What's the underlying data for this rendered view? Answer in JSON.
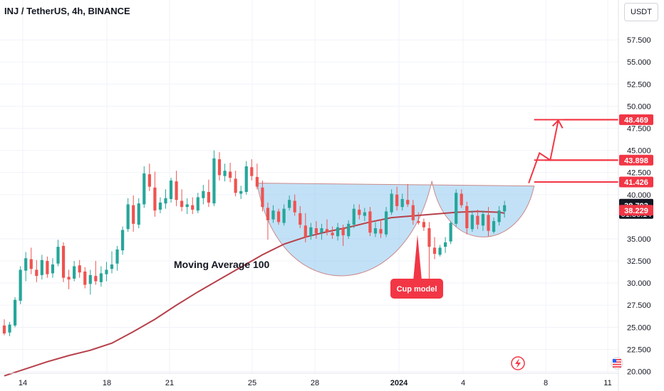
{
  "header": {
    "title": "INJ / TetherUS, 4h, BINANCE",
    "currency": "USDT"
  },
  "annotations": {
    "ma_label": "Moving Average 100",
    "cup_label": "Cup model"
  },
  "colors": {
    "up": "#26a69a",
    "down": "#ef5350",
    "ma": "#b7404a",
    "cup_fill": "#90c8f0",
    "accent": "#f23645"
  },
  "icons": {
    "bolt": "lightning-icon",
    "flag": "us-flag-icon"
  },
  "chart_data": {
    "type": "candlestick",
    "title": "INJ / TetherUS, 4h, BINANCE",
    "ylim": [
      19.8,
      60
    ],
    "y_ticks": [
      "57.500",
      "55.000",
      "52.500",
      "50.000",
      "47.500",
      "45.000",
      "42.500",
      "40.000",
      "35.000",
      "32.500",
      "30.000",
      "27.500",
      "25.000",
      "22.500",
      "20.000"
    ],
    "x_ticks": [
      "14",
      "18",
      "21",
      "25",
      "28",
      "2024",
      "4",
      "8",
      "11"
    ],
    "price_labels": [
      {
        "text": "48.469",
        "value": 48.469,
        "style": "red"
      },
      {
        "text": "43.898",
        "value": 43.898,
        "style": "red"
      },
      {
        "text": "41.426",
        "value": 41.426,
        "style": "red"
      },
      {
        "text": "38.793",
        "value": 38.793,
        "style": "dark",
        "sub": "01:36:14"
      },
      {
        "text": "38.229",
        "value": 38.229,
        "style": "red"
      }
    ],
    "candles": [
      [
        25.2,
        25.9,
        24.1,
        24.3
      ],
      [
        24.4,
        25.6,
        24.0,
        25.3
      ],
      [
        25.2,
        28.4,
        25.0,
        28.1
      ],
      [
        28.0,
        31.9,
        27.6,
        31.5
      ],
      [
        31.4,
        33.5,
        30.2,
        32.8
      ],
      [
        32.7,
        34.0,
        31.0,
        31.6
      ],
      [
        31.5,
        32.6,
        30.1,
        30.8
      ],
      [
        30.9,
        33.2,
        30.4,
        32.6
      ],
      [
        32.5,
        33.0,
        30.6,
        31.0
      ],
      [
        31.1,
        32.8,
        30.6,
        32.1
      ],
      [
        32.2,
        34.9,
        31.9,
        34.1
      ],
      [
        34.2,
        34.6,
        30.1,
        30.6
      ],
      [
        30.7,
        31.5,
        29.3,
        30.4
      ],
      [
        30.5,
        32.5,
        30.2,
        31.9
      ],
      [
        32.0,
        32.6,
        30.6,
        31.2
      ],
      [
        31.3,
        31.8,
        29.4,
        29.8
      ],
      [
        29.9,
        31.5,
        28.7,
        30.9
      ],
      [
        30.8,
        32.5,
        29.8,
        30.2
      ],
      [
        30.1,
        31.9,
        29.6,
        31.1
      ],
      [
        31.0,
        32.4,
        30.2,
        31.5
      ],
      [
        31.6,
        33.6,
        31.1,
        32.1
      ],
      [
        32.2,
        34.2,
        31.4,
        33.8
      ],
      [
        33.7,
        36.4,
        33.2,
        36.0
      ],
      [
        36.1,
        39.6,
        35.8,
        38.9
      ],
      [
        38.8,
        39.9,
        35.8,
        36.7
      ],
      [
        36.6,
        39.6,
        36.2,
        39.0
      ],
      [
        38.9,
        43.2,
        38.5,
        42.4
      ],
      [
        42.3,
        43.5,
        40.4,
        40.9
      ],
      [
        40.8,
        42.6,
        37.5,
        38.2
      ],
      [
        38.3,
        39.7,
        37.9,
        39.1
      ],
      [
        39.0,
        40.6,
        38.4,
        39.6
      ],
      [
        39.5,
        41.9,
        39.1,
        41.6
      ],
      [
        41.5,
        42.7,
        38.7,
        39.4
      ],
      [
        39.3,
        40.6,
        38.1,
        38.6
      ],
      [
        38.6,
        39.6,
        37.8,
        38.9
      ],
      [
        38.8,
        39.7,
        37.8,
        38.3
      ],
      [
        38.2,
        40.2,
        37.9,
        39.7
      ],
      [
        39.6,
        41.1,
        38.9,
        40.4
      ],
      [
        40.3,
        41.7,
        38.6,
        39.1
      ],
      [
        39.0,
        45.0,
        38.7,
        44.1
      ],
      [
        44.0,
        44.8,
        41.6,
        42.2
      ],
      [
        42.1,
        43.5,
        41.5,
        42.7
      ],
      [
        42.6,
        43.6,
        41.4,
        41.9
      ],
      [
        41.8,
        42.7,
        39.8,
        40.2
      ],
      [
        40.1,
        41.0,
        39.5,
        40.4
      ],
      [
        40.3,
        43.8,
        40.0,
        43.2
      ],
      [
        43.1,
        44.0,
        41.6,
        42.1
      ],
      [
        42.0,
        43.5,
        40.6,
        40.9
      ],
      [
        40.8,
        41.6,
        38.1,
        38.6
      ],
      [
        38.5,
        39.1,
        34.9,
        37.1
      ],
      [
        37.2,
        38.8,
        36.8,
        38.2
      ],
      [
        38.1,
        38.4,
        36.6,
        36.9
      ],
      [
        36.8,
        38.9,
        36.5,
        38.4
      ],
      [
        38.5,
        39.9,
        38.2,
        39.4
      ],
      [
        39.3,
        40.0,
        37.6,
        38.0
      ],
      [
        37.9,
        38.7,
        36.2,
        36.6
      ],
      [
        36.5,
        37.9,
        34.6,
        35.2
      ],
      [
        35.3,
        36.8,
        34.9,
        36.3
      ],
      [
        36.2,
        37.0,
        35.0,
        35.6
      ],
      [
        35.7,
        36.7,
        34.9,
        36.2
      ],
      [
        36.1,
        37.2,
        35.4,
        35.8
      ],
      [
        35.7,
        36.4,
        35.0,
        35.4
      ],
      [
        35.3,
        36.8,
        34.8,
        36.3
      ],
      [
        36.2,
        36.6,
        34.2,
        35.4
      ],
      [
        35.3,
        37.1,
        35.0,
        36.7
      ],
      [
        36.6,
        38.9,
        36.2,
        38.4
      ],
      [
        38.3,
        38.9,
        37.2,
        37.7
      ],
      [
        37.6,
        38.5,
        37.0,
        38.0
      ],
      [
        38.1,
        38.6,
        35.3,
        35.7
      ],
      [
        35.6,
        36.9,
        35.2,
        36.2
      ],
      [
        36.1,
        37.2,
        35.1,
        35.6
      ],
      [
        35.5,
        38.6,
        35.2,
        38.1
      ],
      [
        38.0,
        40.6,
        37.7,
        40.1
      ],
      [
        40.0,
        40.9,
        38.2,
        38.7
      ],
      [
        38.6,
        40.1,
        38.2,
        39.5
      ],
      [
        39.4,
        41.2,
        38.6,
        38.9
      ],
      [
        38.8,
        39.4,
        36.6,
        37.1
      ],
      [
        37.0,
        38.0,
        36.6,
        36.8
      ],
      [
        36.9,
        37.3,
        35.9,
        36.3
      ],
      [
        36.2,
        36.9,
        29.4,
        34.1
      ],
      [
        34.0,
        35.2,
        32.7,
        33.3
      ],
      [
        33.2,
        34.3,
        33.0,
        34.0
      ],
      [
        34.1,
        35.2,
        33.4,
        34.6
      ],
      [
        34.7,
        37.0,
        34.4,
        36.8
      ],
      [
        36.7,
        40.6,
        36.4,
        40.2
      ],
      [
        40.1,
        40.6,
        38.5,
        38.8
      ],
      [
        38.7,
        39.2,
        35.5,
        36.2
      ],
      [
        36.1,
        38.2,
        35.8,
        37.7
      ],
      [
        37.6,
        38.3,
        36.1,
        36.6
      ],
      [
        36.5,
        38.2,
        35.9,
        37.8
      ],
      [
        37.7,
        38.6,
        35.3,
        35.9
      ],
      [
        35.8,
        37.4,
        35.6,
        37.0
      ],
      [
        36.9,
        38.7,
        36.5,
        38.2
      ],
      [
        38.1,
        39.3,
        37.4,
        38.8
      ]
    ],
    "moving_average": {
      "name": "Moving Average 100",
      "x": [
        0,
        4,
        8,
        12,
        16,
        20,
        24,
        28,
        32,
        36,
        40,
        44,
        48,
        52,
        56,
        60,
        64,
        68,
        72,
        76,
        80,
        84,
        88,
        92,
        93
      ],
      "y": [
        19.5,
        20.3,
        21.1,
        21.8,
        22.4,
        23.2,
        24.5,
        25.9,
        27.5,
        29.0,
        30.4,
        31.8,
        33.2,
        34.4,
        35.2,
        35.8,
        36.3,
        36.9,
        37.4,
        37.6,
        37.8,
        38.0,
        38.1,
        38.0,
        37.9
      ]
    },
    "cup_pattern": {
      "rim_level": 41.3,
      "cup_start": 47,
      "cup_end": 79.5,
      "cup_bottom": 30.5,
      "handle_end": 98.5,
      "handle_bottom": 35.0
    },
    "projection_path": [
      [
        97.5,
        41.3
      ],
      [
        99.5,
        44.7
      ],
      [
        101.5,
        43.9
      ],
      [
        103,
        48.4
      ]
    ],
    "levels": [
      48.469,
      43.898,
      41.426
    ]
  }
}
